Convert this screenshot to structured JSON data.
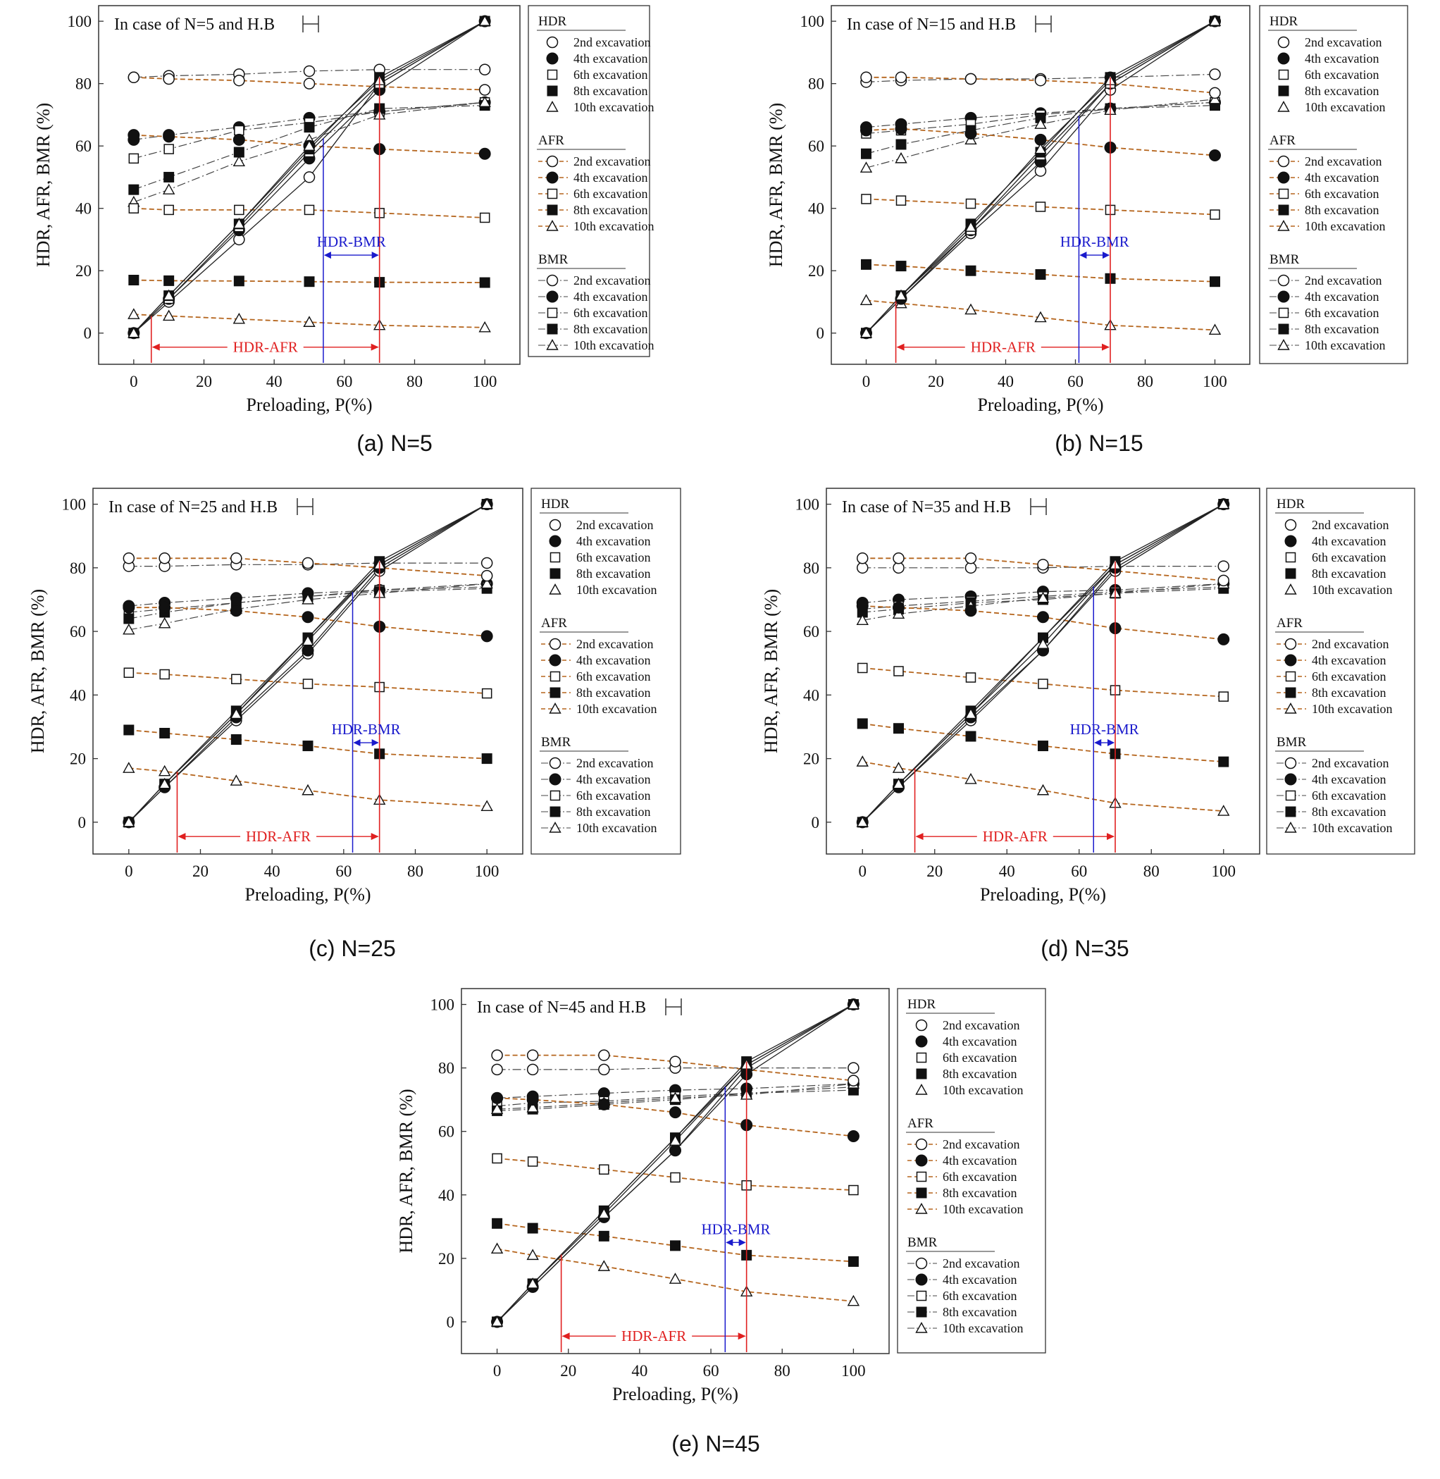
{
  "figure": {
    "colors": {
      "hdr": "#222222",
      "afr": "#b5651d",
      "bmr": "#444444",
      "hdr_afr_marker": "#e02020",
      "hdr_bmr_marker": "#1a1acc",
      "frame": "#333333"
    },
    "legend_groups": [
      {
        "title": "HDR",
        "items": [
          "2nd excavation",
          "4th excavation",
          "6th excavation",
          "8th excavation",
          "10th excavation"
        ]
      },
      {
        "title": "AFR",
        "items": [
          "2nd excavation",
          "4th excavation",
          "6th excavation",
          "8th excavation",
          "10th excavation"
        ]
      },
      {
        "title": "BMR",
        "items": [
          "2nd excavation",
          "4th excavation",
          "6th excavation",
          "8th excavation",
          "10th excavation"
        ]
      }
    ],
    "marker_icons": [
      "open-circle-icon",
      "filled-circle-icon",
      "open-square-icon",
      "filled-square-icon",
      "open-triangle-icon"
    ]
  },
  "chart_data": [
    {
      "type": "line",
      "title": "In case of N=5 and H.B",
      "caption": "(a) N=5",
      "xlabel": "Preloading, P(%)",
      "ylabel": "HDR, AFR, BMR (%)",
      "xlim": [
        -10,
        110
      ],
      "ylim": [
        -10,
        105
      ],
      "xticks": [
        "0",
        "20",
        "40",
        "60",
        "80",
        "100"
      ],
      "yticks": [
        "0",
        "20",
        "40",
        "60",
        "80",
        "100"
      ],
      "x": [
        0,
        10,
        30,
        50,
        70,
        100
      ],
      "hdr": [
        [
          0,
          10,
          30,
          50,
          80,
          100
        ],
        [
          0,
          11,
          33,
          56,
          78,
          100
        ],
        [
          0,
          11,
          34,
          58,
          80,
          100
        ],
        [
          0,
          12,
          35,
          59,
          82,
          100
        ],
        [
          0,
          12,
          35,
          60,
          81,
          100
        ]
      ],
      "afr": [
        [
          82,
          81.5,
          81,
          80,
          79,
          78
        ],
        [
          63.5,
          63,
          62,
          60,
          59,
          57.5
        ],
        [
          40,
          39.5,
          39.5,
          39.5,
          38.5,
          37
        ],
        [
          17,
          16.8,
          16.7,
          16.5,
          16.3,
          16.2
        ],
        [
          6,
          5.5,
          4.5,
          3.5,
          2.5,
          1.8
        ]
      ],
      "bmr": [
        [
          82,
          82.5,
          83,
          84,
          84.5,
          84.5
        ],
        [
          62,
          63.5,
          66,
          69,
          71,
          74
        ],
        [
          56,
          59,
          65,
          67.5,
          71,
          74
        ],
        [
          46,
          50,
          58,
          66,
          72,
          73
        ],
        [
          42,
          46,
          55,
          62,
          70,
          74
        ]
      ],
      "hdr_afr": {
        "label": "HDR-AFR",
        "from": 5,
        "to": 70
      },
      "hdr_bmr": {
        "label": "HDR-BMR",
        "from": 54,
        "to": 70
      }
    },
    {
      "type": "line",
      "title": "In case of N=15 and H.B",
      "caption": "(b) N=15",
      "xlabel": "Preloading, P(%)",
      "ylabel": "HDR, AFR, BMR (%)",
      "xlim": [
        -10,
        110
      ],
      "ylim": [
        -10,
        105
      ],
      "xticks": [
        "0",
        "20",
        "40",
        "60",
        "80",
        "100"
      ],
      "yticks": [
        "0",
        "20",
        "40",
        "60",
        "80",
        "100"
      ],
      "x": [
        0,
        10,
        30,
        50,
        70,
        100
      ],
      "hdr": [
        [
          0,
          11,
          32,
          52,
          78,
          100
        ],
        [
          0,
          11,
          33,
          55,
          80,
          100
        ],
        [
          0,
          12,
          33,
          57,
          80,
          100
        ],
        [
          0,
          12,
          35,
          58,
          82,
          100
        ],
        [
          0,
          12,
          34,
          59,
          81,
          100
        ]
      ],
      "afr": [
        [
          82,
          82,
          81.5,
          81,
          80,
          77
        ],
        [
          65,
          65.5,
          64,
          62,
          59.5,
          57
        ],
        [
          43,
          42.5,
          41.5,
          40.5,
          39.5,
          38
        ],
        [
          22,
          21.5,
          20,
          18.8,
          17.5,
          16.5
        ],
        [
          10.5,
          9.5,
          7.5,
          5,
          2.5,
          1
        ]
      ],
      "bmr": [
        [
          80.5,
          81,
          81.5,
          81.5,
          82,
          83
        ],
        [
          66,
          67,
          69,
          70.5,
          72,
          74
        ],
        [
          64,
          65,
          67,
          70,
          72,
          74
        ],
        [
          57.5,
          60.5,
          65,
          69,
          72,
          73
        ],
        [
          53,
          56,
          62,
          67,
          71.5,
          75
        ]
      ],
      "hdr_afr": {
        "label": "HDR-AFR",
        "from": 8.5,
        "to": 70
      },
      "hdr_bmr": {
        "label": "HDR-BMR",
        "from": 61,
        "to": 70
      }
    },
    {
      "type": "line",
      "title": "In case of N=25 and H.B",
      "caption": "(c) N=25",
      "xlabel": "Preloading, P(%)",
      "ylabel": "HDR, AFR, BMR (%)",
      "xlim": [
        -10,
        110
      ],
      "ylim": [
        -10,
        105
      ],
      "xticks": [
        "0",
        "20",
        "40",
        "60",
        "80",
        "100"
      ],
      "yticks": [
        "0",
        "20",
        "40",
        "60",
        "80",
        "100"
      ],
      "x": [
        0,
        10,
        30,
        50,
        70,
        100
      ],
      "hdr": [
        [
          0,
          11,
          32,
          53,
          79,
          100
        ],
        [
          0,
          11,
          33,
          54,
          80,
          100
        ],
        [
          0,
          12,
          34,
          58,
          81,
          100
        ],
        [
          0,
          12,
          35,
          58,
          82,
          100
        ],
        [
          0,
          12,
          34,
          57,
          81,
          100
        ]
      ],
      "afr": [
        [
          83,
          83,
          83,
          81.5,
          80,
          77.5
        ],
        [
          67.5,
          67.5,
          66.5,
          64.5,
          61.5,
          58.5
        ],
        [
          47,
          46.5,
          45,
          43.5,
          42.5,
          40.5
        ],
        [
          29,
          28,
          26,
          24,
          21.5,
          20
        ],
        [
          17,
          16,
          13,
          10,
          7,
          5
        ]
      ],
      "bmr": [
        [
          80.5,
          80.5,
          81,
          81,
          81.5,
          81.5
        ],
        [
          68,
          69,
          70.5,
          72,
          73,
          75
        ],
        [
          66,
          67,
          69,
          71,
          73,
          74
        ],
        [
          64,
          66,
          69,
          71,
          72.5,
          73.5
        ],
        [
          60.5,
          62.5,
          67,
          70,
          72,
          75
        ]
      ],
      "hdr_afr": {
        "label": "HDR-AFR",
        "from": 13.5,
        "to": 70
      },
      "hdr_bmr": {
        "label": "HDR-BMR",
        "from": 62.5,
        "to": 70
      }
    },
    {
      "type": "line",
      "title": "In case of N=35 and H.B",
      "caption": "(d) N=35",
      "xlabel": "Preloading, P(%)",
      "ylabel": "HDR, AFR, BMR (%)",
      "xlim": [
        -10,
        110
      ],
      "ylim": [
        -10,
        105
      ],
      "xticks": [
        "0",
        "20",
        "40",
        "60",
        "80",
        "100"
      ],
      "yticks": [
        "0",
        "20",
        "40",
        "60",
        "80",
        "100"
      ],
      "x": [
        0,
        10,
        30,
        50,
        70,
        100
      ],
      "hdr": [
        [
          0,
          11,
          32,
          54,
          79,
          100
        ],
        [
          0,
          11,
          33,
          54,
          80,
          100
        ],
        [
          0,
          12,
          34,
          58,
          81,
          100
        ],
        [
          0,
          12,
          35,
          58,
          82,
          100
        ],
        [
          0,
          12,
          34,
          56,
          81,
          100
        ]
      ],
      "afr": [
        [
          83,
          83,
          83,
          81,
          79,
          76
        ],
        [
          68,
          67.5,
          66.5,
          64.5,
          61,
          57.5
        ],
        [
          48.5,
          47.5,
          45.5,
          43.5,
          41.5,
          39.5
        ],
        [
          31,
          29.5,
          27,
          24,
          21.5,
          19
        ],
        [
          19,
          17,
          13.5,
          10,
          6,
          3.5
        ]
      ],
      "bmr": [
        [
          80,
          80,
          80,
          80,
          80.5,
          80.5
        ],
        [
          69,
          70,
          71,
          72.5,
          73,
          75
        ],
        [
          67,
          68,
          69.5,
          71,
          72.5,
          74
        ],
        [
          66,
          67,
          69,
          70,
          72,
          73.5
        ],
        [
          63.5,
          65.5,
          68,
          70.5,
          72,
          75
        ]
      ],
      "hdr_afr": {
        "label": "HDR-AFR",
        "from": 14.5,
        "to": 70
      },
      "hdr_bmr": {
        "label": "HDR-BMR",
        "from": 64,
        "to": 70
      }
    },
    {
      "type": "line",
      "title": "In case of N=45 and H.B",
      "caption": "(e) N=45",
      "xlabel": "Preloading, P(%)",
      "ylabel": "HDR, AFR, BMR (%)",
      "xlim": [
        -10,
        110
      ],
      "ylim": [
        -10,
        105
      ],
      "xticks": [
        "0",
        "20",
        "40",
        "60",
        "80",
        "100"
      ],
      "yticks": [
        "0",
        "20",
        "40",
        "60",
        "80",
        "100"
      ],
      "x": [
        0,
        10,
        30,
        50,
        70,
        100
      ],
      "hdr": [
        [
          0,
          11,
          33,
          54,
          80,
          100
        ],
        [
          0,
          11,
          33,
          54,
          78,
          100
        ],
        [
          0,
          12,
          35,
          58,
          81,
          100
        ],
        [
          0,
          12,
          35,
          58,
          82,
          100
        ],
        [
          0,
          12,
          34,
          57,
          81,
          100
        ]
      ],
      "afr": [
        [
          84,
          84,
          84,
          82,
          79.5,
          76
        ],
        [
          70.5,
          70,
          68.5,
          66,
          62,
          58.5
        ],
        [
          51.5,
          50.5,
          48,
          45.5,
          43,
          41.5
        ],
        [
          31,
          29.5,
          27,
          24,
          21,
          19
        ],
        [
          23,
          21,
          17.5,
          13.5,
          9.5,
          6.5
        ]
      ],
      "bmr": [
        [
          79.5,
          79.5,
          79.5,
          80,
          80,
          80
        ],
        [
          70.5,
          71,
          72,
          73,
          73.5,
          75
        ],
        [
          68,
          69,
          69.5,
          71,
          72,
          74
        ],
        [
          66.5,
          67,
          68.5,
          70,
          72,
          73
        ],
        [
          67,
          67.5,
          69,
          70.5,
          71.5,
          75
        ]
      ],
      "hdr_afr": {
        "label": "HDR-AFR",
        "from": 18,
        "to": 70
      },
      "hdr_bmr": {
        "label": "HDR-BMR",
        "from": 64,
        "to": 70
      }
    }
  ]
}
